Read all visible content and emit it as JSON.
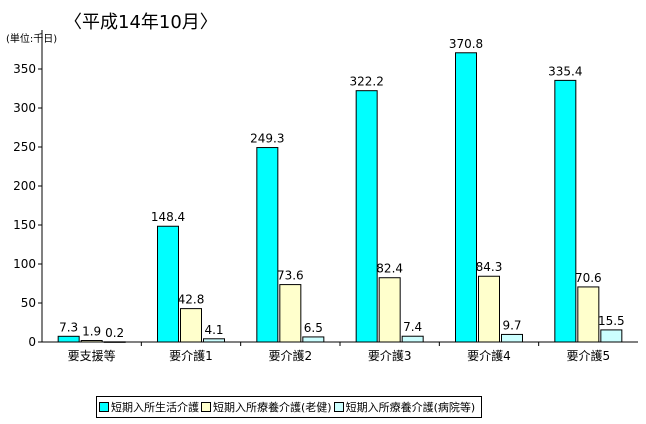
{
  "chart_data": {
    "type": "bar",
    "title": "〈平成14年10月〉",
    "unit_label": "(単位:千日)",
    "categories": [
      "要支援等",
      "要介護1",
      "要介護2",
      "要介護3",
      "要介護4",
      "要介護5"
    ],
    "series": [
      {
        "name": "短期入所生活介護",
        "color": "#00ffff",
        "values": [
          7.3,
          148.4,
          249.3,
          322.2,
          370.8,
          335.4
        ],
        "labels": [
          "7.3",
          "148.4",
          "249.3",
          "322.2",
          "370.8",
          "335.4"
        ]
      },
      {
        "name": "短期入所療養介護(老健)",
        "color": "#ffffcc",
        "values": [
          1.9,
          42.8,
          73.6,
          82.4,
          84.3,
          70.6
        ],
        "labels": [
          "1.9",
          "42.8",
          "73.6",
          "82.4",
          "84.3",
          "70.6"
        ]
      },
      {
        "name": "短期入所療養介護(病院等)",
        "color": "#ccffff",
        "values": [
          0.2,
          4.1,
          6.5,
          7.4,
          9.7,
          15.5
        ],
        "labels": [
          "0.2",
          "4.1",
          "6.5",
          "7.4",
          "9.7",
          "15.5"
        ]
      }
    ],
    "ylim": [
      0,
      400
    ],
    "yticks": [
      0,
      50,
      100,
      150,
      200,
      250,
      300,
      350
    ],
    "grid": false,
    "legend_position": "bottom"
  }
}
